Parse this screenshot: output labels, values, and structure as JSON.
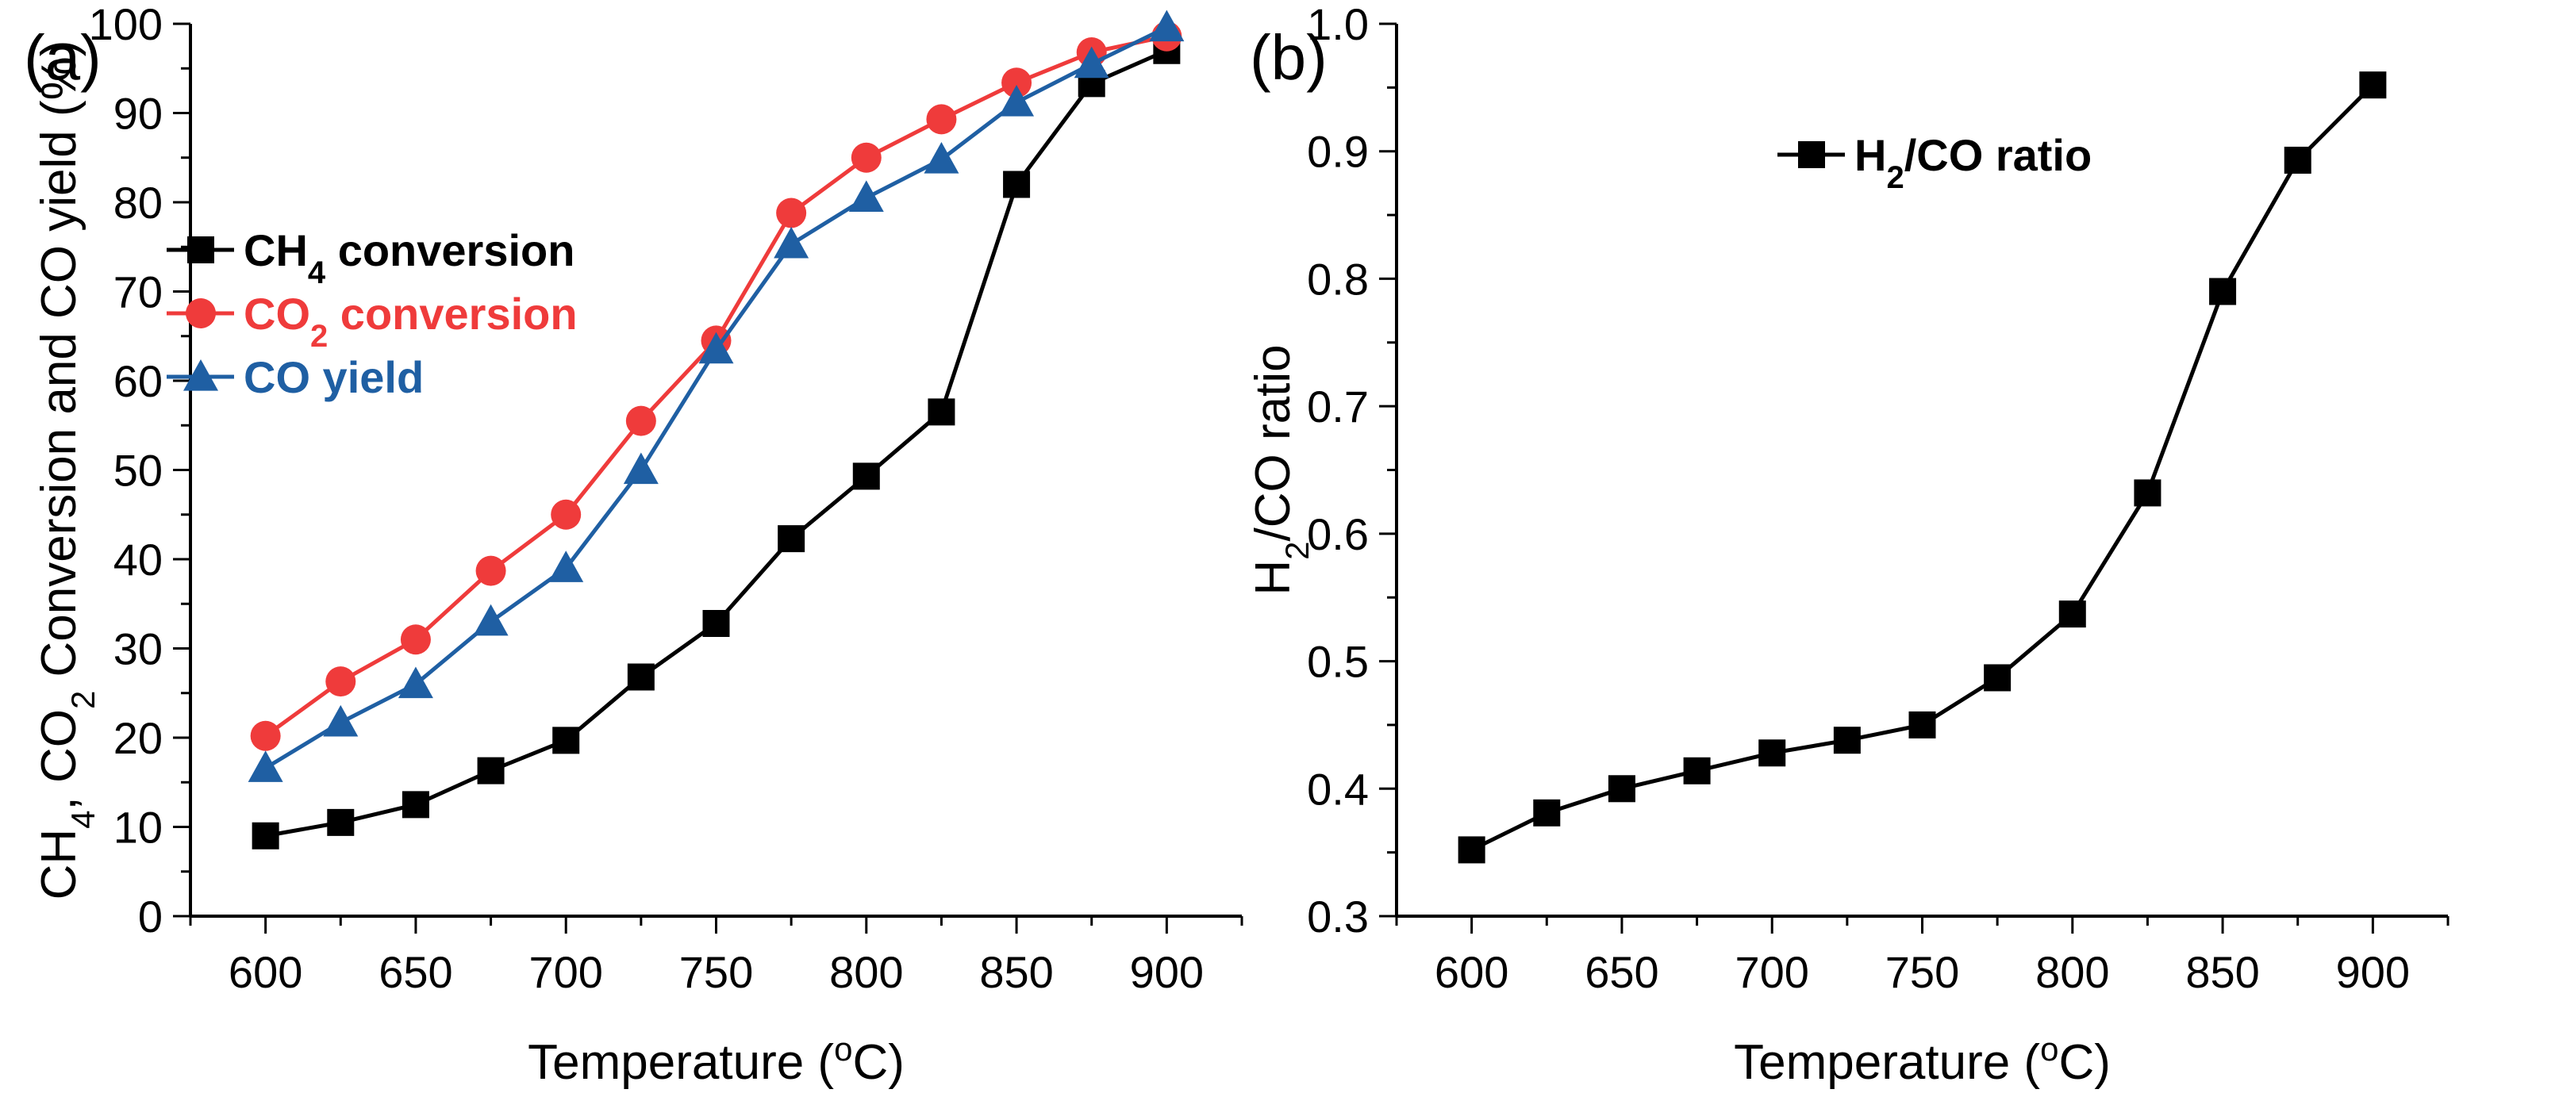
{
  "chart_data": [
    {
      "panel_label": "(a)",
      "type": "line",
      "xlabel": "Temperature (°C)",
      "xlabel_parts": {
        "main": "Temperature (",
        "sup": "o",
        "unit": "C)"
      },
      "ylabel": "CH4, CO2 Conversion and CO yield (%)",
      "ylabel_parts": {
        "a": "CH",
        "a_sub": "4",
        "b": ", CO",
        "b_sub": "2",
        "c": " Conversion and CO yield (%)"
      },
      "xlim": [
        575,
        925
      ],
      "ylim": [
        0,
        100
      ],
      "x_ticks": [
        600,
        650,
        700,
        750,
        800,
        850,
        900
      ],
      "y_ticks": [
        0,
        10,
        20,
        30,
        40,
        50,
        60,
        70,
        80,
        90,
        100
      ],
      "x": [
        600,
        625,
        650,
        675,
        700,
        725,
        750,
        775,
        800,
        825,
        850,
        875,
        900
      ],
      "legend_position": "center-left",
      "series": [
        {
          "name": "CH4 conversion",
          "legend_parts": {
            "a": "CH",
            "sub": "4",
            "b": " conversion"
          },
          "color": "#000000",
          "marker": "square",
          "values": [
            9,
            10.5,
            12.5,
            16.3,
            19.7,
            26.8,
            32.8,
            42.3,
            49.3,
            56.5,
            82,
            93.3,
            97
          ]
        },
        {
          "name": "CO2 conversion",
          "legend_parts": {
            "a": "CO",
            "sub": "2",
            "b": " conversion"
          },
          "color": "#ef3b3b",
          "marker": "circle",
          "values": [
            20.2,
            26.3,
            31,
            38.7,
            45,
            55.5,
            64.5,
            78.8,
            85,
            89.3,
            93.4,
            96.8,
            98.6
          ]
        },
        {
          "name": "CO yield",
          "legend_parts": {
            "a": "CO yield",
            "sub": "",
            "b": ""
          },
          "color": "#1f5fa3",
          "marker": "triangle",
          "values": [
            16.6,
            21.7,
            26,
            33,
            39,
            50,
            63.5,
            75.3,
            80.5,
            84.8,
            91.2,
            95.5,
            99.6
          ]
        }
      ]
    },
    {
      "panel_label": "(b)",
      "type": "line",
      "xlabel": "Temperature (°C)",
      "xlabel_parts": {
        "main": "Temperature (",
        "sup": "o",
        "unit": "C)"
      },
      "ylabel": "H2/CO ratio",
      "ylabel_parts": {
        "a": "H",
        "a_sub": "2",
        "b": "/CO ratio"
      },
      "xlim": [
        575,
        925
      ],
      "ylim": [
        0.3,
        1.0
      ],
      "x_ticks": [
        600,
        650,
        700,
        750,
        800,
        850,
        900
      ],
      "y_ticks": [
        "0.3",
        "0.4",
        "0.5",
        "0.6",
        "0.7",
        "0.8",
        "0.9",
        "1.0"
      ],
      "x": [
        600,
        625,
        650,
        675,
        700,
        725,
        750,
        775,
        800,
        825,
        850,
        875,
        900
      ],
      "legend_position": "upper-center",
      "series": [
        {
          "name": "H2/CO ratio",
          "legend_parts": {
            "a": "H",
            "sub": "2",
            "b": "/CO ratio"
          },
          "color": "#000000",
          "marker": "square",
          "values": [
            0.352,
            0.381,
            0.4,
            0.414,
            0.428,
            0.438,
            0.45,
            0.487,
            0.537,
            0.632,
            0.79,
            0.893,
            0.952
          ]
        }
      ]
    }
  ]
}
